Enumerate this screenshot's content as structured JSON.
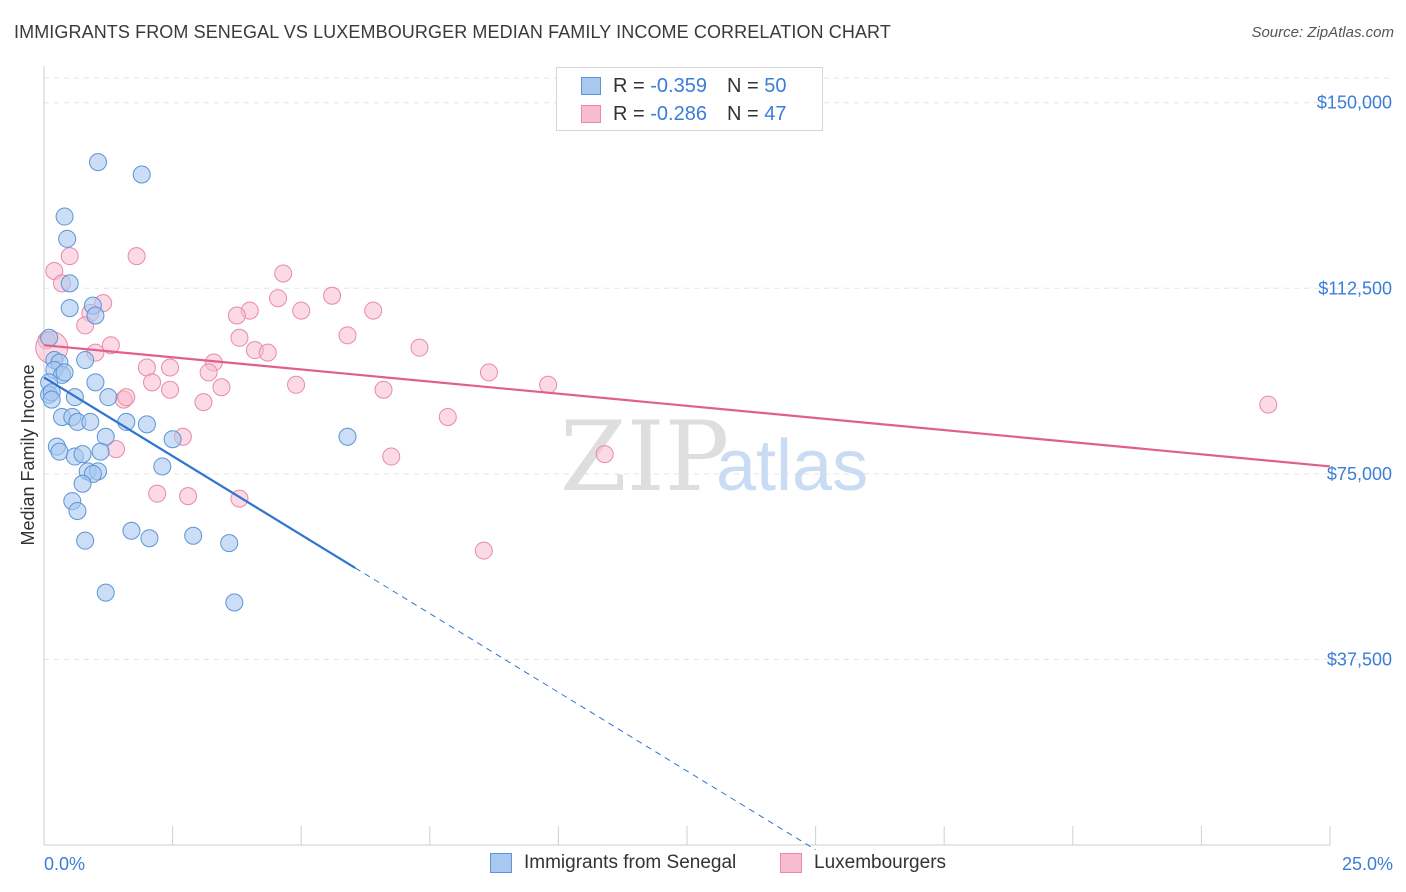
{
  "title": "IMMIGRANTS FROM SENEGAL VS LUXEMBOURGER MEDIAN FAMILY INCOME CORRELATION CHART",
  "source": "Source: ZipAtlas.com",
  "watermark": {
    "zip": "ZIP",
    "atlas": "atlas"
  },
  "legend": {
    "r_label": "R =",
    "n_label": "N =",
    "series": [
      {
        "name": "Immigrants from Senegal",
        "r": "-0.359",
        "n": "50"
      },
      {
        "name": "Luxembourgers",
        "r": "-0.286",
        "n": "47"
      }
    ]
  },
  "colors": {
    "senegal_fill": "#a9c8f0",
    "senegal_stroke": "#5b95d6",
    "senegal_line": "#2f74d0",
    "lux_fill": "#f7bcd0",
    "lux_stroke": "#e88aa8",
    "lux_line": "#e0608a",
    "tick_text": "#3b7dd8",
    "grid": "#e3e3e3"
  },
  "chart_data": {
    "type": "scatter",
    "title": "IMMIGRANTS FROM SENEGAL VS LUXEMBOURGER MEDIAN FAMILY INCOME CORRELATION CHART",
    "xlabel": "",
    "ylabel": "Median Family Income",
    "xlim": [
      0,
      25
    ],
    "ylim": [
      0,
      155000
    ],
    "x_tick_labels": [
      "0.0%",
      "25.0%"
    ],
    "y_ticks": [
      37500,
      75000,
      112500,
      150000
    ],
    "y_tick_labels": [
      "$37,500",
      "$75,000",
      "$112,500",
      "$150,000"
    ],
    "series": [
      {
        "name": "Immigrants from Senegal",
        "points": [
          [
            1.05,
            138000
          ],
          [
            1.9,
            135500
          ],
          [
            0.4,
            127000
          ],
          [
            0.45,
            122500
          ],
          [
            0.5,
            113500
          ],
          [
            0.95,
            109000
          ],
          [
            0.5,
            108500
          ],
          [
            1.0,
            107000
          ],
          [
            0.1,
            102500
          ],
          [
            0.2,
            98000
          ],
          [
            0.3,
            97500
          ],
          [
            0.8,
            98000
          ],
          [
            0.2,
            96000
          ],
          [
            0.35,
            95000
          ],
          [
            0.1,
            93500
          ],
          [
            0.1,
            91000
          ],
          [
            0.15,
            91500
          ],
          [
            1.0,
            93500
          ],
          [
            0.6,
            90500
          ],
          [
            1.25,
            90500
          ],
          [
            0.35,
            86500
          ],
          [
            0.55,
            86500
          ],
          [
            0.65,
            85500
          ],
          [
            0.9,
            85500
          ],
          [
            1.6,
            85500
          ],
          [
            2.0,
            85000
          ],
          [
            1.2,
            82500
          ],
          [
            2.5,
            82000
          ],
          [
            5.9,
            82500
          ],
          [
            0.25,
            80500
          ],
          [
            0.3,
            79500
          ],
          [
            0.6,
            78500
          ],
          [
            0.75,
            79000
          ],
          [
            1.1,
            79500
          ],
          [
            0.85,
            75500
          ],
          [
            1.05,
            75500
          ],
          [
            2.3,
            76500
          ],
          [
            0.95,
            75000
          ],
          [
            0.75,
            73000
          ],
          [
            0.55,
            69500
          ],
          [
            0.65,
            67500
          ],
          [
            1.7,
            63500
          ],
          [
            2.05,
            62000
          ],
          [
            2.9,
            62500
          ],
          [
            0.8,
            61500
          ],
          [
            3.6,
            61000
          ],
          [
            1.2,
            51000
          ],
          [
            3.7,
            49000
          ],
          [
            0.15,
            90000
          ],
          [
            0.4,
            95500
          ]
        ]
      },
      {
        "name": "Luxembourgers",
        "points": [
          [
            0.5,
            119000
          ],
          [
            1.8,
            119000
          ],
          [
            0.2,
            116000
          ],
          [
            0.35,
            113500
          ],
          [
            4.65,
            115500
          ],
          [
            5.6,
            111000
          ],
          [
            4.55,
            110500
          ],
          [
            1.15,
            109500
          ],
          [
            4.0,
            108000
          ],
          [
            5.0,
            108000
          ],
          [
            6.4,
            108000
          ],
          [
            3.75,
            107000
          ],
          [
            0.9,
            107500
          ],
          [
            0.8,
            105000
          ],
          [
            3.8,
            102500
          ],
          [
            5.9,
            103000
          ],
          [
            0.05,
            102000
          ],
          [
            1.3,
            101000
          ],
          [
            4.1,
            100000
          ],
          [
            7.3,
            100500
          ],
          [
            1.0,
            99500
          ],
          [
            4.35,
            99500
          ],
          [
            3.3,
            97500
          ],
          [
            2.0,
            96500
          ],
          [
            2.45,
            96500
          ],
          [
            3.2,
            95500
          ],
          [
            8.65,
            95500
          ],
          [
            2.1,
            93500
          ],
          [
            3.45,
            92500
          ],
          [
            4.9,
            93000
          ],
          [
            6.6,
            92000
          ],
          [
            9.8,
            93000
          ],
          [
            2.45,
            92000
          ],
          [
            1.55,
            90000
          ],
          [
            1.6,
            90500
          ],
          [
            3.1,
            89500
          ],
          [
            7.85,
            86500
          ],
          [
            23.8,
            89000
          ],
          [
            2.7,
            82500
          ],
          [
            1.4,
            80000
          ],
          [
            6.75,
            78500
          ],
          [
            10.9,
            79000
          ],
          [
            2.2,
            71000
          ],
          [
            2.8,
            70500
          ],
          [
            3.8,
            70000
          ],
          [
            8.55,
            59500
          ],
          [
            0.15,
            100500
          ]
        ]
      }
    ],
    "trendlines": [
      {
        "series": "Immigrants from Senegal",
        "x0": 0,
        "y0": 94500,
        "x1": 6.05,
        "y1": 56000,
        "dashed_to_x": 15.0
      },
      {
        "series": "Luxembourgers",
        "x0": 0,
        "y0": 101000,
        "x1": 25,
        "y1": 76500
      }
    ]
  }
}
